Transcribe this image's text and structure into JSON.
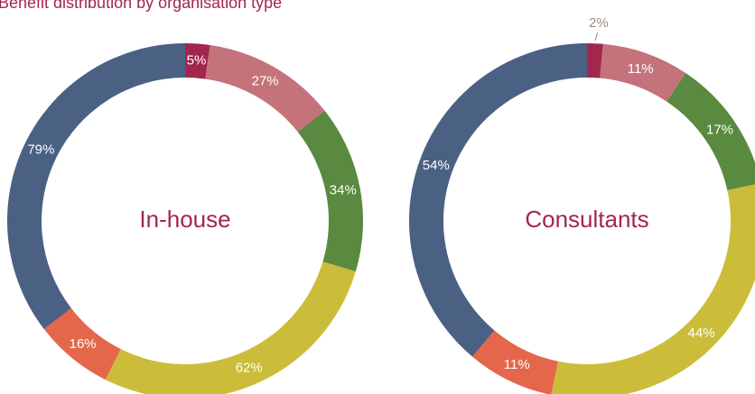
{
  "title": "Benefit distribution by organisation type",
  "chart_data": [
    {
      "type": "donut",
      "center_label": "In-house",
      "values": [
        5,
        27,
        34,
        62,
        16,
        79
      ],
      "value_labels": [
        "5%",
        "27%",
        "34%",
        "62%",
        "16%",
        "79%"
      ],
      "colors": [
        "#a3264f",
        "#c4737a",
        "#5a8a40",
        "#cbbd3a",
        "#e4674b",
        "#4a6184"
      ]
    },
    {
      "type": "donut",
      "center_label": "Consultants",
      "values": [
        2,
        11,
        17,
        44,
        11,
        54
      ],
      "value_labels": [
        "2%",
        "11%",
        "17%",
        "44%",
        "11%",
        "54%"
      ],
      "colors": [
        "#a3264f",
        "#c4737a",
        "#5a8a40",
        "#cbbd3a",
        "#e4674b",
        "#4a6184"
      ]
    }
  ]
}
